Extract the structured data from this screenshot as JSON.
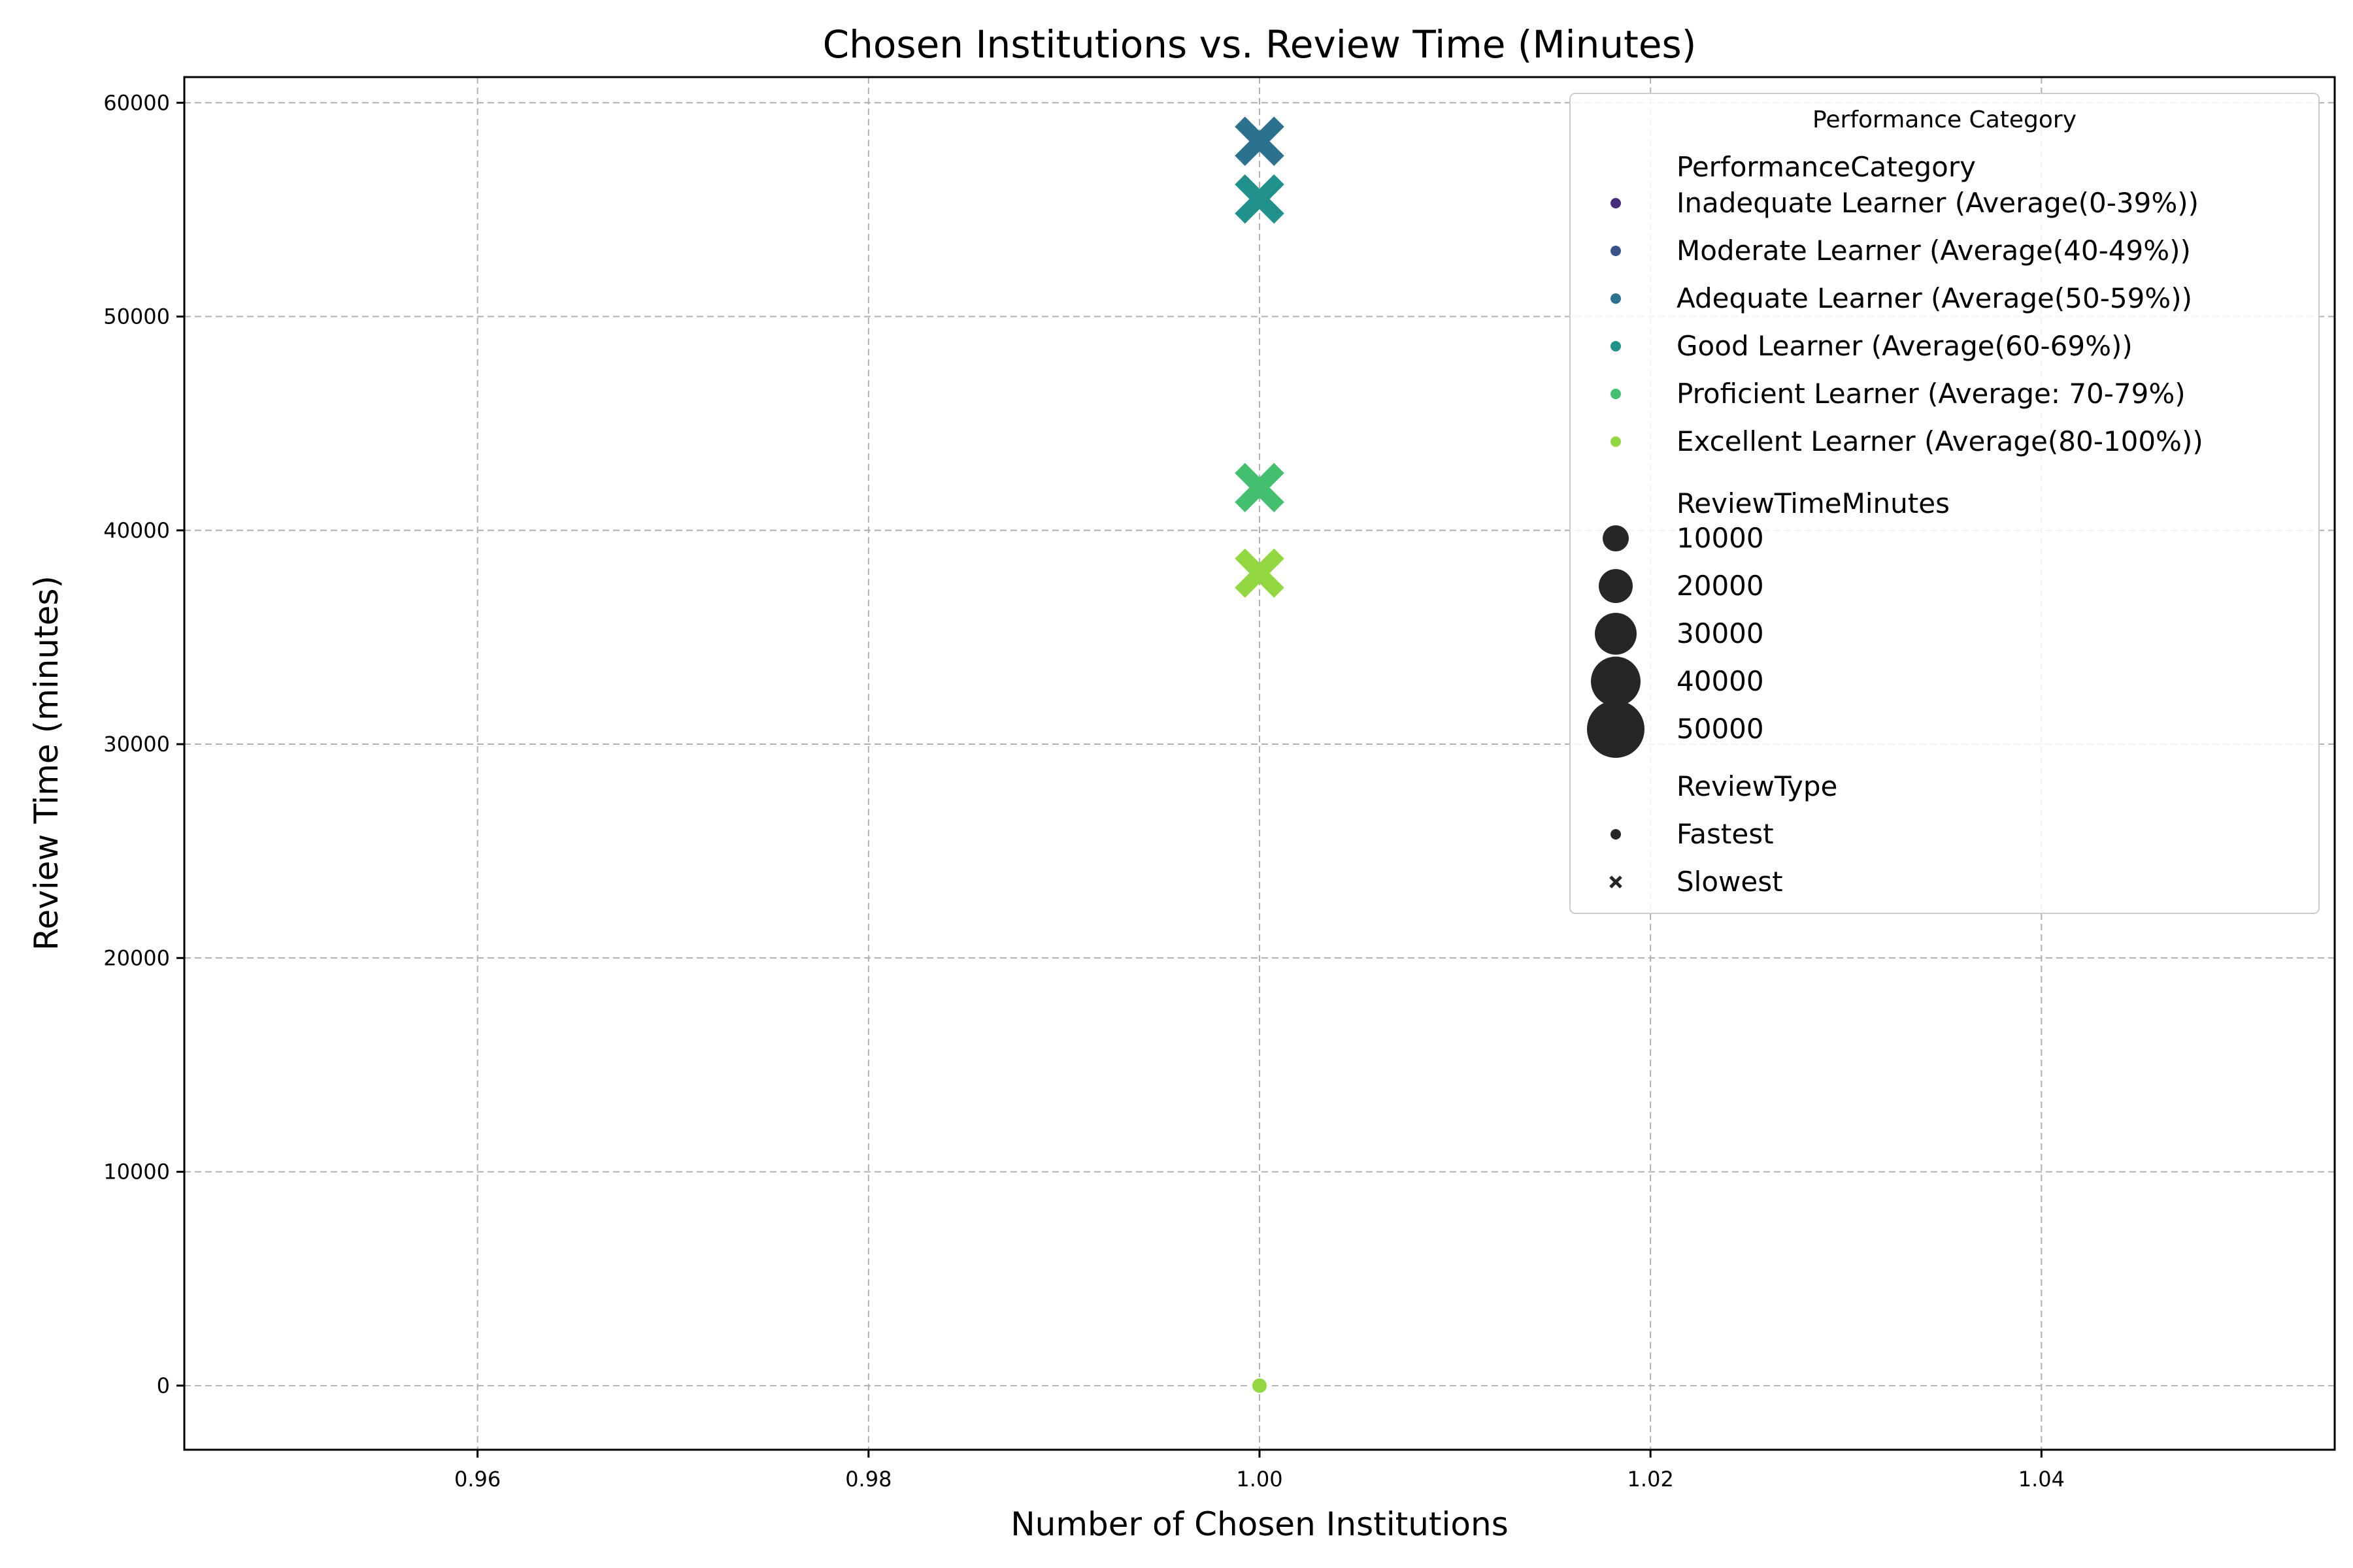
{
  "chart_data": {
    "type": "scatter",
    "title": "Chosen Institutions vs. Review Time (Minutes)",
    "xlabel": "Number of Chosen Institutions",
    "ylabel": "Review Time (minutes)",
    "xlim": [
      0.945,
      1.055
    ],
    "ylim": [
      -3000,
      61200
    ],
    "xticks": [
      0.96,
      0.98,
      1.0,
      1.02,
      1.04
    ],
    "xtick_labels": [
      "0.96",
      "0.98",
      "1.00",
      "1.02",
      "1.04"
    ],
    "yticks": [
      0,
      10000,
      20000,
      30000,
      40000,
      50000,
      60000
    ],
    "ytick_labels": [
      "0",
      "10000",
      "20000",
      "30000",
      "40000",
      "50000",
      "60000"
    ],
    "grid": true,
    "legend": {
      "placement": "top-right",
      "title": "Performance Category",
      "hue_heading": "PerformanceCategory",
      "size_heading": "ReviewTimeMinutes",
      "style_heading": "ReviewType",
      "categories": [
        {
          "label": "Inadequate Learner (Average(0-39%))",
          "color": "#472d7b"
        },
        {
          "label": "Moderate Learner (Average(40-49%))",
          "color": "#3b528b"
        },
        {
          "label": "Adequate Learner (Average(50-59%))",
          "color": "#2c728e"
        },
        {
          "label": "Good Learner (Average(60-69%))",
          "color": "#21918c"
        },
        {
          "label": "Proficient Learner (Average: 70-79%)",
          "color": "#44bf70"
        },
        {
          "label": "Excellent Learner (Average(80-100%))",
          "color": "#93d741"
        }
      ],
      "sizes": [
        {
          "label": "10000",
          "value": 10000
        },
        {
          "label": "20000",
          "value": 20000
        },
        {
          "label": "30000",
          "value": 30000
        },
        {
          "label": "40000",
          "value": 40000
        },
        {
          "label": "50000",
          "value": 50000
        }
      ],
      "styles": [
        {
          "label": "Fastest",
          "marker": "circle"
        },
        {
          "label": "Slowest",
          "marker": "x"
        }
      ]
    },
    "series": [
      {
        "category": "Adequate Learner (Average(50-59%))",
        "review_type": "Slowest",
        "x": 1.0,
        "y": 58200
      },
      {
        "category": "Good Learner (Average(60-69%))",
        "review_type": "Slowest",
        "x": 1.0,
        "y": 55500
      },
      {
        "category": "Proficient Learner (Average: 70-79%)",
        "review_type": "Slowest",
        "x": 1.0,
        "y": 42000
      },
      {
        "category": "Excellent Learner (Average(80-100%))",
        "review_type": "Slowest",
        "x": 1.0,
        "y": 38000
      },
      {
        "category": "Excellent Learner (Average(80-100%))",
        "review_type": "Fastest",
        "x": 1.0,
        "y": 0
      }
    ]
  }
}
